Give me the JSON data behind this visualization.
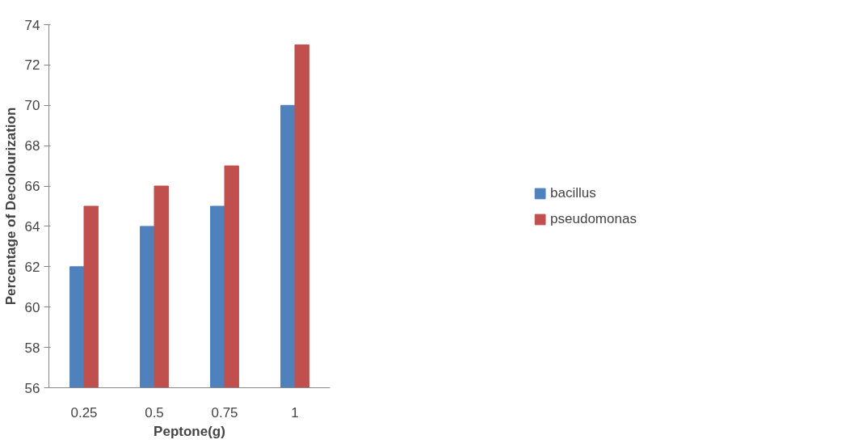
{
  "chart_data": {
    "type": "bar",
    "xlabel": "Peptone(g)",
    "ylabel": "Percentage of Decolourization",
    "categories": [
      "0.25",
      "0.5",
      "0.75",
      "1"
    ],
    "series": [
      {
        "name": "bacillus",
        "color": "#4f81bd",
        "values": [
          62,
          64,
          65,
          70
        ]
      },
      {
        "name": "pseudomonas",
        "color": "#c0504d",
        "values": [
          65,
          66,
          67,
          73
        ]
      }
    ],
    "ylim": [
      56,
      74
    ],
    "yticks": [
      56,
      58,
      60,
      62,
      64,
      66,
      68,
      70,
      72,
      74
    ],
    "grid": false,
    "legend": "right"
  }
}
